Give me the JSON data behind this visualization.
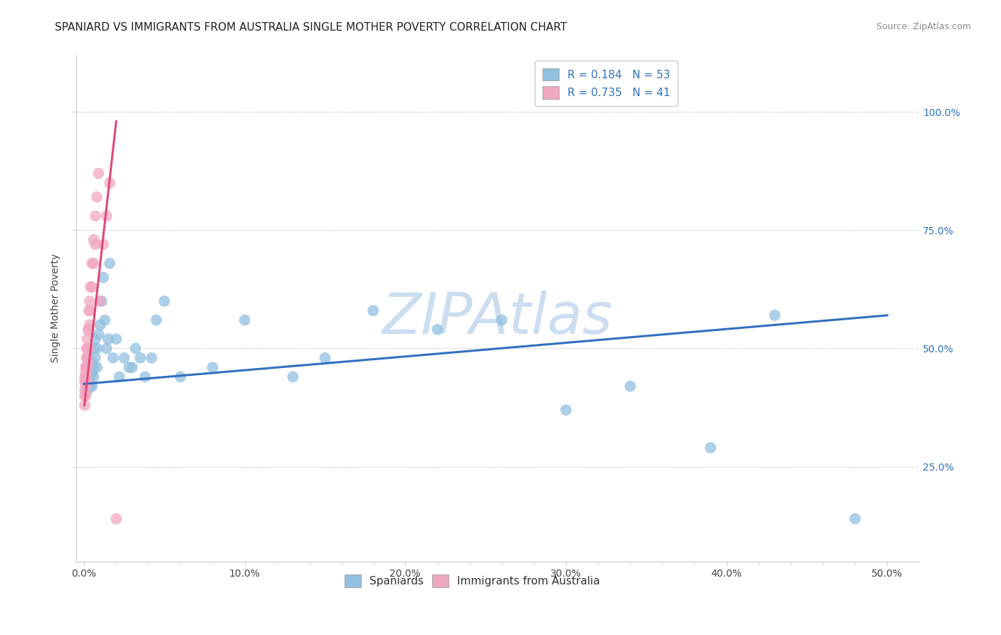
{
  "title": "SPANIARD VS IMMIGRANTS FROM AUSTRALIA SINGLE MOTHER POVERTY CORRELATION CHART",
  "source": "Source: ZipAtlas.com",
  "ylabel": "Single Mother Poverty",
  "x_tick_labels": [
    "0.0%",
    "",
    "",
    "",
    "",
    "10.0%",
    "",
    "",
    "",
    "",
    "20.0%",
    "",
    "",
    "",
    "",
    "30.0%",
    "",
    "",
    "",
    "",
    "40.0%",
    "",
    "",
    "",
    "",
    "50.0%"
  ],
  "x_tick_positions": [
    0.0,
    0.02,
    0.04,
    0.06,
    0.08,
    0.1,
    0.12,
    0.14,
    0.16,
    0.18,
    0.2,
    0.22,
    0.24,
    0.26,
    0.28,
    0.3,
    0.32,
    0.34,
    0.36,
    0.38,
    0.4,
    0.42,
    0.44,
    0.46,
    0.48,
    0.5
  ],
  "y_tick_labels_right": [
    "25.0%",
    "50.0%",
    "75.0%",
    "100.0%"
  ],
  "y_tick_positions": [
    0.25,
    0.5,
    0.75,
    1.0
  ],
  "xlim": [
    -0.005,
    0.52
  ],
  "ylim": [
    0.05,
    1.12
  ],
  "legend_labels_bottom": [
    "Spaniards",
    "Immigrants from Australia"
  ],
  "blue_scatter_x": [
    0.001,
    0.002,
    0.002,
    0.002,
    0.003,
    0.003,
    0.003,
    0.004,
    0.004,
    0.004,
    0.005,
    0.005,
    0.005,
    0.006,
    0.006,
    0.006,
    0.007,
    0.007,
    0.008,
    0.008,
    0.009,
    0.01,
    0.011,
    0.012,
    0.013,
    0.014,
    0.015,
    0.016,
    0.018,
    0.02,
    0.022,
    0.025,
    0.028,
    0.03,
    0.032,
    0.035,
    0.038,
    0.042,
    0.045,
    0.05,
    0.06,
    0.08,
    0.1,
    0.13,
    0.15,
    0.18,
    0.22,
    0.26,
    0.3,
    0.34,
    0.39,
    0.43,
    0.48
  ],
  "blue_scatter_y": [
    0.43,
    0.44,
    0.41,
    0.46,
    0.45,
    0.43,
    0.48,
    0.44,
    0.46,
    0.42,
    0.45,
    0.47,
    0.42,
    0.44,
    0.46,
    0.5,
    0.48,
    0.52,
    0.46,
    0.5,
    0.53,
    0.55,
    0.6,
    0.65,
    0.56,
    0.5,
    0.52,
    0.68,
    0.48,
    0.52,
    0.44,
    0.48,
    0.46,
    0.46,
    0.5,
    0.48,
    0.44,
    0.48,
    0.56,
    0.6,
    0.44,
    0.46,
    0.56,
    0.44,
    0.48,
    0.58,
    0.54,
    0.56,
    0.37,
    0.42,
    0.29,
    0.57,
    0.14
  ],
  "pink_scatter_x": [
    0.0005,
    0.0005,
    0.0005,
    0.0005,
    0.0005,
    0.001,
    0.001,
    0.001,
    0.001,
    0.001,
    0.0015,
    0.0015,
    0.0015,
    0.0015,
    0.002,
    0.002,
    0.002,
    0.002,
    0.0025,
    0.0025,
    0.0025,
    0.003,
    0.003,
    0.003,
    0.0035,
    0.0035,
    0.004,
    0.004,
    0.005,
    0.005,
    0.006,
    0.006,
    0.007,
    0.007,
    0.008,
    0.009,
    0.01,
    0.012,
    0.014,
    0.016,
    0.02
  ],
  "pink_scatter_y": [
    0.38,
    0.4,
    0.41,
    0.43,
    0.44,
    0.4,
    0.42,
    0.43,
    0.45,
    0.46,
    0.44,
    0.46,
    0.48,
    0.5,
    0.43,
    0.46,
    0.48,
    0.52,
    0.47,
    0.5,
    0.54,
    0.5,
    0.54,
    0.58,
    0.55,
    0.6,
    0.58,
    0.63,
    0.63,
    0.68,
    0.68,
    0.73,
    0.72,
    0.78,
    0.82,
    0.87,
    0.6,
    0.72,
    0.78,
    0.85,
    0.14
  ],
  "blue_line_x": [
    0.0,
    0.5
  ],
  "blue_line_y": [
    0.425,
    0.57
  ],
  "pink_line_x": [
    0.0002,
    0.02
  ],
  "pink_line_y": [
    0.38,
    0.98
  ],
  "blue_color": "#92c0e0",
  "pink_color": "#f0a8c0",
  "blue_line_color": "#3070c0",
  "pink_line_color": "#e04878",
  "watermark": "ZIPAtlas",
  "watermark_color": "#ccddf0",
  "background_color": "#ffffff",
  "grid_color": "#d8d8d8",
  "title_fontsize": 11,
  "axis_label_fontsize": 10,
  "tick_fontsize": 10,
  "right_tick_color": "#3070c0"
}
